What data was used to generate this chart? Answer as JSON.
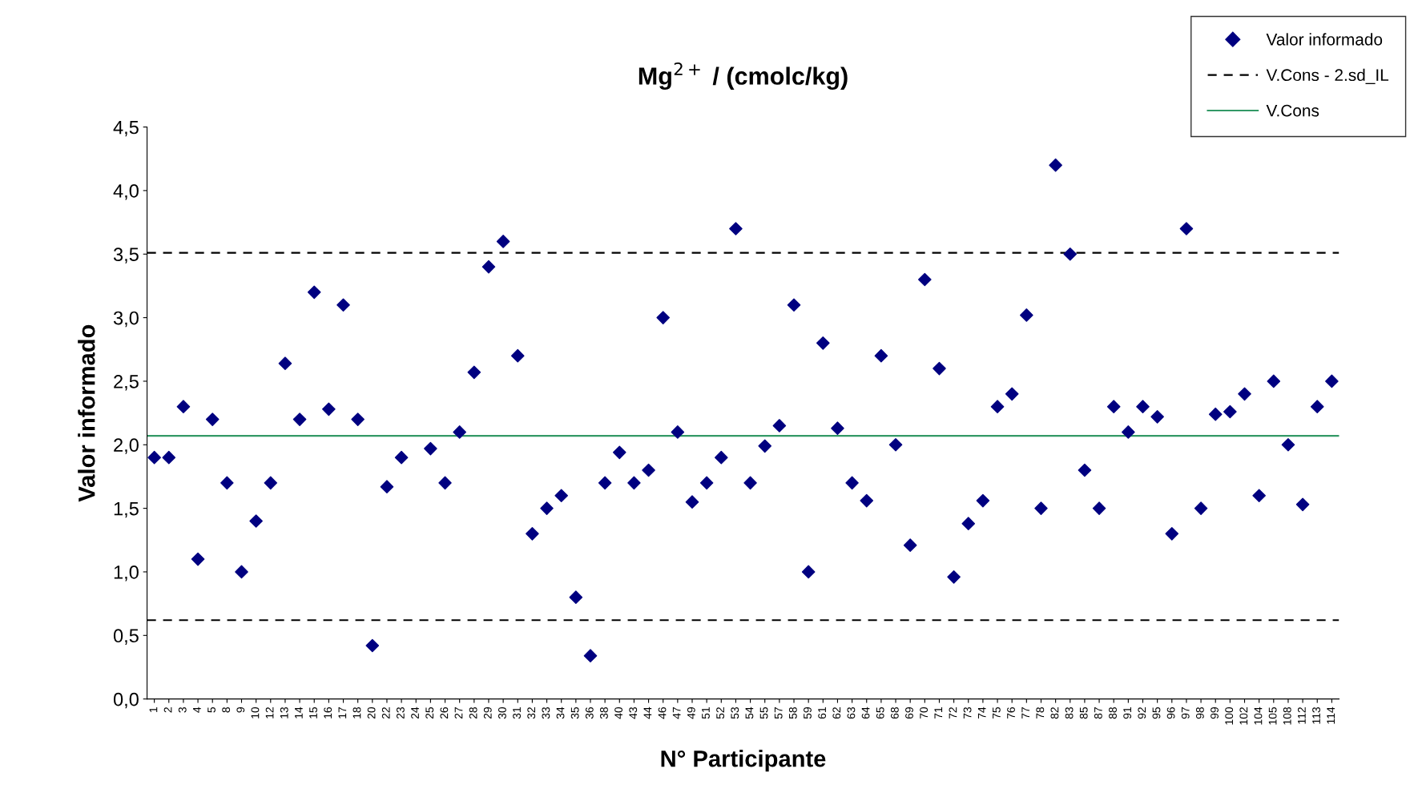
{
  "chart_data": {
    "type": "scatter",
    "title": "Mg$^{2+}$ / (cmolc/kg)",
    "xlabel": "N° Participante",
    "ylabel": "Valor informado",
    "categories": [
      "1",
      "2",
      "3",
      "4",
      "5",
      "8",
      "9",
      "10",
      "12",
      "13",
      "14",
      "15",
      "16",
      "17",
      "18",
      "20",
      "22",
      "23",
      "24",
      "25",
      "26",
      "27",
      "28",
      "29",
      "30",
      "31",
      "32",
      "33",
      "34",
      "35",
      "36",
      "38",
      "40",
      "43",
      "44",
      "46",
      "47",
      "49",
      "51",
      "52",
      "53",
      "54",
      "55",
      "57",
      "58",
      "59",
      "61",
      "62",
      "63",
      "64",
      "65",
      "68",
      "69",
      "70",
      "71",
      "72",
      "73",
      "74",
      "75",
      "76",
      "77",
      "78",
      "82",
      "83",
      "85",
      "87",
      "88",
      "91",
      "92",
      "95",
      "96",
      "97",
      "98",
      "99",
      "100",
      "102",
      "104",
      "105",
      "108",
      "112",
      "113",
      "114"
    ],
    "series": [
      {
        "name": "Valor informado",
        "color": "#000080",
        "values": [
          1.9,
          1.9,
          2.3,
          1.1,
          2.2,
          1.7,
          1.0,
          1.4,
          1.7,
          2.64,
          2.2,
          3.2,
          2.28,
          3.1,
          2.2,
          0.42,
          1.67,
          1.9,
          null,
          1.97,
          1.7,
          2.1,
          2.57,
          3.4,
          3.6,
          2.7,
          1.3,
          1.5,
          1.6,
          0.8,
          0.34,
          1.7,
          1.94,
          1.7,
          1.8,
          3.0,
          2.1,
          1.55,
          1.7,
          1.9,
          3.7,
          1.7,
          1.99,
          2.15,
          3.1,
          1.0,
          2.8,
          2.13,
          1.7,
          1.56,
          2.7,
          2.0,
          1.21,
          3.3,
          2.6,
          0.96,
          1.38,
          1.56,
          2.3,
          2.4,
          3.02,
          1.5,
          4.2,
          3.5,
          1.8,
          1.5,
          2.3,
          2.1,
          2.3,
          2.22,
          1.3,
          3.7,
          1.5,
          2.24,
          2.26,
          2.4,
          1.6,
          2.5,
          2.0,
          1.53,
          2.3,
          2.5
        ]
      }
    ],
    "marker": "diamond",
    "ref_lines": [
      {
        "axis": "y",
        "value": 3.51,
        "label": "V.Cons - 2.sd_IL",
        "color": "#000000",
        "line_style": "dashed"
      },
      {
        "axis": "y",
        "value": 0.62,
        "label": null,
        "color": "#000000",
        "line_style": "dashed"
      },
      {
        "axis": "y",
        "value": 2.07,
        "label": "V.Cons",
        "color": "#339966",
        "line_style": "solid"
      }
    ],
    "ylim": [
      0,
      4.5
    ],
    "yticks": [
      {
        "value": 0,
        "label": "0,0"
      },
      {
        "value": 0.5,
        "label": "0,5"
      },
      {
        "value": 1,
        "label": "1,0"
      },
      {
        "value": 1.5,
        "label": "1,5"
      },
      {
        "value": 2,
        "label": "2,0"
      },
      {
        "value": 2.5,
        "label": "2,5"
      },
      {
        "value": 3,
        "label": "3,0"
      },
      {
        "value": 3.5,
        "label": "3,5"
      },
      {
        "value": 4,
        "label": "4,0"
      },
      {
        "value": 4.5,
        "label": "4,5"
      }
    ],
    "grid": false,
    "legend": "top right"
  }
}
